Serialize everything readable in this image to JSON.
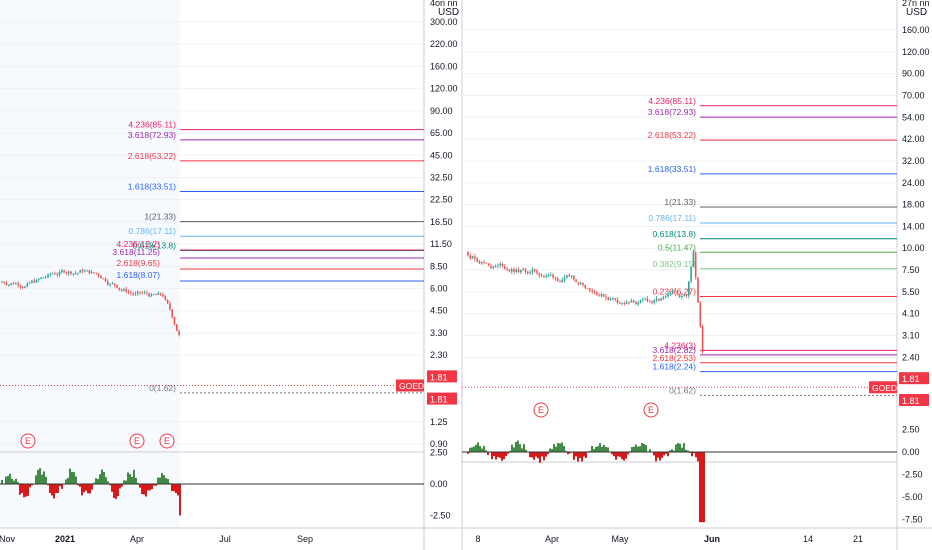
{
  "colors": {
    "bg": "#ffffff",
    "grid": "#eef0f3",
    "border": "#c9ccd3",
    "axis_text": "#131722",
    "candle_up": "#26a69a",
    "candle_down": "#ef5350",
    "price_label_bg": "#f23645",
    "osc_up": "#2e7d32",
    "osc_down": "#d50000",
    "fib_1": "#5d606b",
    "fib_0786": "#64b5f6",
    "fib_0618": "#00897b",
    "fib_05": "#4caf50",
    "fib_0382": "#81c784",
    "fib_0236": "#f23645",
    "fib_1618": "#2962ff",
    "fib_2618": "#f23645",
    "fib_3618": "#9c27b0",
    "fib_4236": "#e91e63",
    "fib_0": "#787b86",
    "earnings_ring": "#f23645"
  },
  "chart_data": [
    {
      "type": "candlestick",
      "panel": "left",
      "y_scale": "log",
      "currency_label": "USD",
      "y_axis_ticks": [
        "300.00",
        "220.00",
        "160.00",
        "120.00",
        "90.00",
        "65.00",
        "45.00",
        "32.50",
        "22.50",
        "16.50",
        "11.50",
        "8.50",
        "6.00",
        "4.50",
        "3.30",
        "2.30",
        "1.81",
        "1.81",
        "1.25",
        "0.90"
      ],
      "y_axis_header_fragment": "4on nn",
      "x_axis_ticks": [
        "Nov",
        "2021",
        "Apr",
        "Jul",
        "Sep"
      ],
      "ylim": [
        0.75,
        430
      ],
      "fib_levels": [
        {
          "label": "4.236(85.11)",
          "value": 85.11,
          "color_key": "fib_4236"
        },
        {
          "label": "3.618(72.93)",
          "value": 72.93,
          "color_key": "fib_3618"
        },
        {
          "label": "2.618(53.22)",
          "value": 53.22,
          "color_key": "fib_2618"
        },
        {
          "label": "1.618(33.51)",
          "value": 33.51,
          "color_key": "fib_1618"
        },
        {
          "label": "1(21.33)",
          "value": 21.33,
          "color_key": "fib_1"
        },
        {
          "label": "0.786(17.11)",
          "value": 17.11,
          "color_key": "fib_0786"
        },
        {
          "label": "0.618(13.8)",
          "value": 13.8,
          "color_key": "fib_0618"
        },
        {
          "label": "0(1.62)",
          "value": 1.62,
          "color_key": "fib_0"
        }
      ],
      "overlapping_fib_labels": [
        "4.236(12.2)",
        "3.618(11.25)",
        "2.618(9.65)",
        "1.618(8.07)"
      ],
      "current_price": "1.81",
      "symbol_tag": "GOED",
      "earnings_markers": 3,
      "oscillator_ticks": [
        "2.50",
        "0.00",
        "-2.50"
      ]
    },
    {
      "type": "candlestick",
      "panel": "right",
      "y_scale": "log",
      "currency_label": "USD",
      "y_axis_header_fragment": "27n nn",
      "y_axis_ticks": [
        "160.00",
        "120.00",
        "90.00",
        "70.00",
        "54.00",
        "42.00",
        "32.00",
        "24.00",
        "18.00",
        "14.00",
        "10.00",
        "7.50",
        "5.50",
        "4.10",
        "3.10",
        "2.40",
        "1.81",
        "1.81"
      ],
      "x_axis_ticks": [
        "8",
        "Apr",
        "May",
        "Jun",
        "14",
        "21"
      ],
      "ylim": [
        1.5,
        240
      ],
      "fib_levels": [
        {
          "label": "4.236(85.11)",
          "value": 85.11,
          "color_key": "fib_4236"
        },
        {
          "label": "3.618(72.93)",
          "value": 72.93,
          "color_key": "fib_3618"
        },
        {
          "label": "2.618(53.22)",
          "value": 53.22,
          "color_key": "fib_2618"
        },
        {
          "label": "1.618(33.51)",
          "value": 33.51,
          "color_key": "fib_1618"
        },
        {
          "label": "1(21.33)",
          "value": 21.33,
          "color_key": "fib_1"
        },
        {
          "label": "0.786(17.11)",
          "value": 17.11,
          "color_key": "fib_0786"
        },
        {
          "label": "0.618(13.8)",
          "value": 13.8,
          "color_key": "fib_0618"
        },
        {
          "label": "0.5(11.47)",
          "value": 11.47,
          "color_key": "fib_05"
        },
        {
          "label": "0.382(9.15)",
          "value": 9.15,
          "color_key": "fib_0382"
        },
        {
          "label": "0.236(6.27)",
          "value": 6.27,
          "color_key": "fib_0236"
        },
        {
          "label": "4.236(3)",
          "value": 3.0,
          "color_key": "fib_4236"
        },
        {
          "label": "3.618(2.82)",
          "value": 2.82,
          "color_key": "fib_3618"
        },
        {
          "label": "2.618(2.53)",
          "value": 2.53,
          "color_key": "fib_2618"
        },
        {
          "label": "1.618(2.24)",
          "value": 2.24,
          "color_key": "fib_1618"
        },
        {
          "label": "0(1.62)",
          "value": 1.62,
          "color_key": "fib_0"
        }
      ],
      "current_price": "1.81",
      "symbol_tag": "GOED",
      "earnings_markers": 2,
      "oscillator_ticks": [
        "2.50",
        "0.00",
        "-2.50",
        "-5.00",
        "-7.50"
      ]
    }
  ]
}
